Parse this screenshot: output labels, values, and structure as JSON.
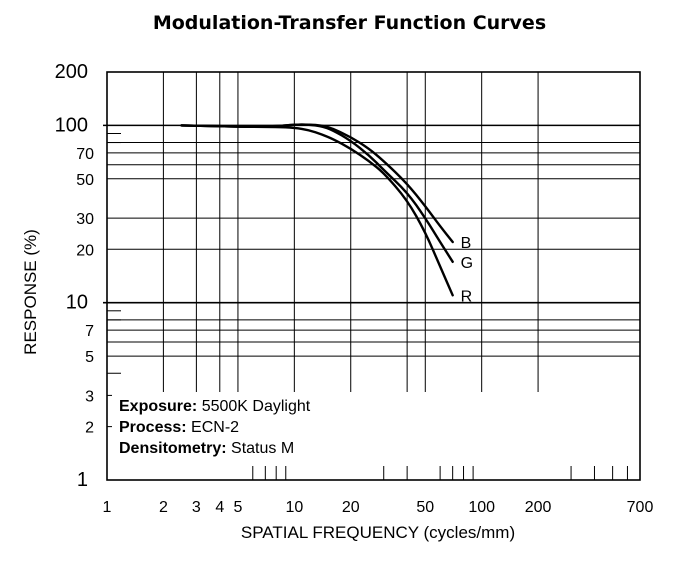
{
  "chart_data": {
    "type": "line",
    "title": "Modulation-Transfer Function Curves",
    "xlabel": "SPATIAL FREQUENCY (cycles/mm)",
    "ylabel": "RESPONSE (%)",
    "xscale": "log",
    "yscale": "log",
    "xlim": [
      1,
      700
    ],
    "ylim": [
      1,
      200
    ],
    "x_ticks": [
      1,
      2,
      3,
      4,
      5,
      10,
      20,
      50,
      100,
      200,
      700
    ],
    "x_tick_labels": [
      "1",
      "2",
      "3",
      "4",
      "5",
      "10",
      "20",
      "50",
      "100",
      "200",
      "700"
    ],
    "y_ticks": [
      1,
      2,
      3,
      5,
      7,
      10,
      20,
      30,
      50,
      70,
      100,
      200
    ],
    "y_tick_labels": [
      "1",
      "2",
      "3",
      "5",
      "7",
      "10",
      "20",
      "30",
      "50",
      "70",
      "100",
      "200"
    ],
    "series": [
      {
        "name": "B",
        "color": "#000000",
        "x": [
          2.5,
          4,
          6,
          8,
          10,
          12,
          14,
          16,
          20,
          25,
          30,
          40,
          50,
          60,
          70
        ],
        "y": [
          100,
          99,
          98,
          99,
          101,
          101,
          100,
          96,
          86,
          74,
          63,
          47,
          35,
          27,
          22
        ]
      },
      {
        "name": "G",
        "color": "#000000",
        "x": [
          2.5,
          4,
          6,
          8,
          10,
          12,
          14,
          16,
          20,
          25,
          30,
          40,
          50,
          60,
          70
        ],
        "y": [
          100,
          99,
          98,
          99,
          101,
          101,
          99,
          94,
          82,
          68,
          56,
          42,
          30,
          22,
          17
        ]
      },
      {
        "name": "R",
        "color": "#000000",
        "x": [
          2.5,
          4,
          6,
          8,
          10,
          12,
          14,
          16,
          20,
          25,
          30,
          40,
          50,
          60,
          70
        ],
        "y": [
          100,
          99,
          98,
          98,
          97,
          94,
          89,
          84,
          74,
          63,
          54,
          38,
          25,
          16,
          11
        ]
      }
    ],
    "annotations": {
      "exposure_label": "Exposure:",
      "exposure_value": " 5500K Daylight",
      "process_label": "Process:",
      "process_value": " ECN-2",
      "densitometry_label": "Densitometry:",
      "densitometry_value": " Status M"
    },
    "grid": true
  }
}
